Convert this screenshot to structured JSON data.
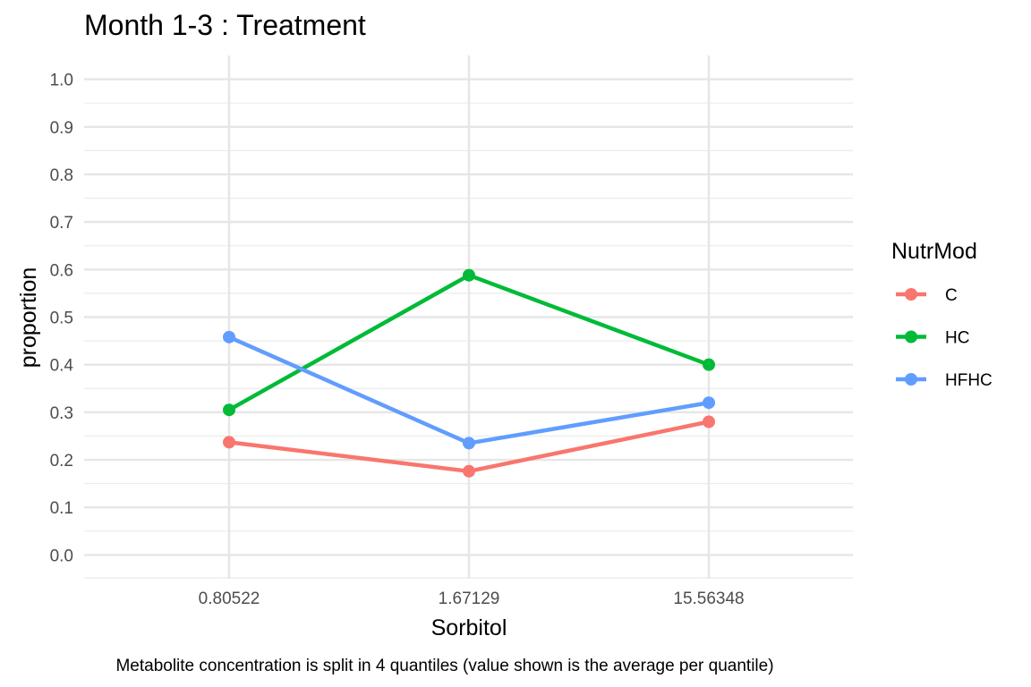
{
  "chart_data": {
    "type": "line",
    "title": "Month 1-3 : Treatment",
    "xlabel": "Sorbitol",
    "ylabel": "proportion",
    "caption": "Metabolite concentration is split in 4 quantiles (value shown is the average per quantile)",
    "categories": [
      "0.80522",
      "1.67129",
      "15.56348"
    ],
    "ylim": [
      -0.05,
      1.05
    ],
    "yticks": [
      "0.0",
      "0.1",
      "0.2",
      "0.3",
      "0.4",
      "0.5",
      "0.6",
      "0.7",
      "0.8",
      "0.9",
      "1.0"
    ],
    "grid": true,
    "legend": {
      "title": "NutrMod",
      "position": "right"
    },
    "series": [
      {
        "name": "C",
        "color": "#F8766D",
        "values": [
          0.237,
          0.176,
          0.28
        ]
      },
      {
        "name": "HC",
        "color": "#00BA38",
        "values": [
          0.305,
          0.588,
          0.4
        ]
      },
      {
        "name": "HFHC",
        "color": "#619CFF",
        "values": [
          0.458,
          0.235,
          0.32
        ]
      }
    ]
  }
}
